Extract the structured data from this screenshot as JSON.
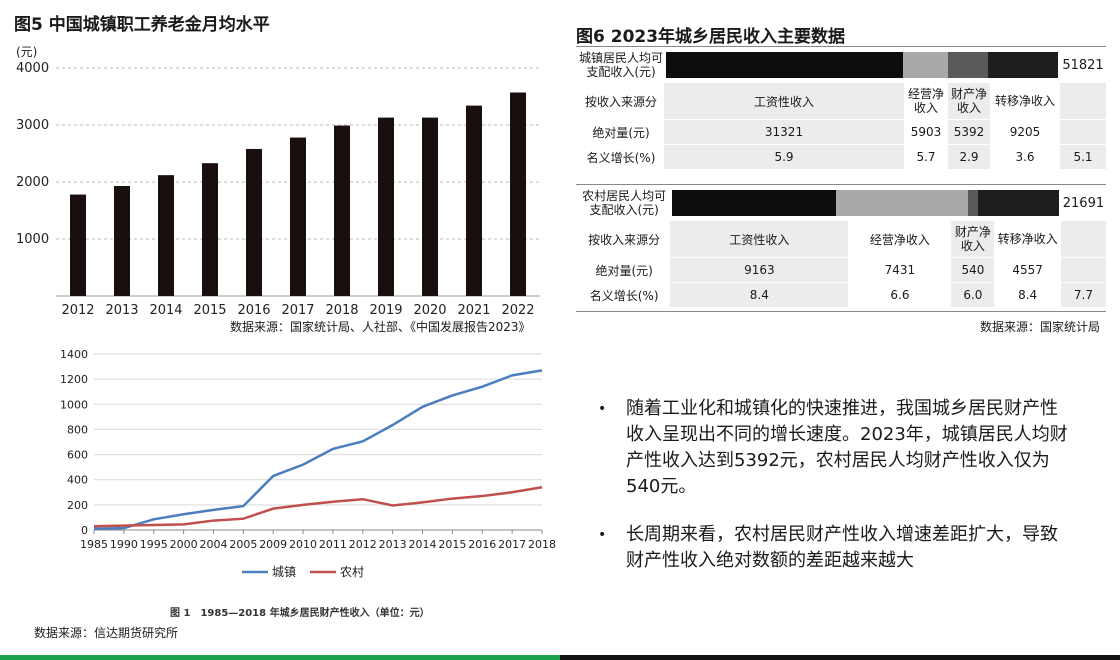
{
  "fig5": {
    "title": "图5 中国城镇职工养老金月均水平",
    "source": "数据来源：国家统计局、人社部、《中国发展报告2023》"
  },
  "fig6": {
    "title": "图6 2023年城乡居民收入主要数据",
    "source": "数据来源：国家统计局",
    "urban": {
      "label": "城镇居民人均可支配收入(元)",
      "total": "51821",
      "row_labels": [
        "按收入来源分",
        "绝对量(元)",
        "名义增长(%)"
      ],
      "columns": [
        "工资性收入",
        "经营净收入",
        "财产净收入",
        "转移净收入"
      ],
      "amounts": [
        "31321",
        "5903",
        "5392",
        "9205"
      ],
      "growth": [
        "5.9",
        "5.7",
        "2.9",
        "3.6"
      ],
      "total_growth": "5.1",
      "bar_colors": [
        "#0d0d0d",
        "#a9a9a9",
        "#5a5a5a",
        "#1e1e1e"
      ],
      "bar_values": [
        31321,
        5903,
        5392,
        9205
      ]
    },
    "rural": {
      "label": "农村居民人均可支配收入(元)",
      "total": "21691",
      "row_labels": [
        "按收入来源分",
        "绝对量(元)",
        "名义增长(%)"
      ],
      "columns": [
        "工资性收入",
        "经营净收入",
        "财产净收入",
        "转移净收入"
      ],
      "amounts": [
        "9163",
        "7431",
        "540",
        "4557"
      ],
      "growth": [
        "8.4",
        "6.6",
        "6.0",
        "8.4"
      ],
      "total_growth": "7.7",
      "bar_colors": [
        "#0d0d0d",
        "#a9a9a9",
        "#5a5a5a",
        "#1e1e1e"
      ],
      "bar_values": [
        9163,
        7431,
        540,
        4557
      ]
    }
  },
  "line_fig": {
    "caption": "图 1　1985—2018 年城乡居民财产性收入（单位：元）",
    "source": "数据来源：信达期货研究所"
  },
  "bullets": [
    "随着工业化和城镇化的快速推进，我国城乡居民财产性收入呈现出不同的增长速度。2023年，城镇居民人均财产性收入达到5392元，农村居民人均财产性收入仅为540元。",
    "长周期来看，农村居民财产性收入增速差距扩大，导致财产性收入绝对数额的差距越来越大"
  ],
  "chart_data": [
    {
      "type": "bar",
      "title": "图5 中国城镇职工养老金月均水平",
      "ylabel": "(元)",
      "categories": [
        "2012",
        "2013",
        "2014",
        "2015",
        "2016",
        "2017",
        "2018",
        "2019",
        "2020",
        "2021",
        "2022"
      ],
      "values": [
        1780,
        1930,
        2120,
        2330,
        2580,
        2780,
        2990,
        3130,
        3130,
        3340,
        3570
      ],
      "ylim": [
        0,
        4000
      ],
      "yticks": [
        1000,
        2000,
        3000,
        4000
      ],
      "grid": true,
      "bar_color": "#1a0f0f"
    },
    {
      "type": "line",
      "title": "1985—2018 年城乡居民财产性收入（单位：元）",
      "x": [
        "1985",
        "1990",
        "1995",
        "2000",
        "2004",
        "2005",
        "2009",
        "2010",
        "2011",
        "2012",
        "2013",
        "2014",
        "2015",
        "2016",
        "2017",
        "2018"
      ],
      "series": [
        {
          "name": "城镇",
          "color": "#4a7ebf",
          "values": [
            10,
            15,
            85,
            125,
            160,
            190,
            430,
            520,
            645,
            705,
            835,
            980,
            1070,
            1140,
            1230,
            1270
          ]
        },
        {
          "name": "农村",
          "color": "#c0504d",
          "values": [
            30,
            35,
            40,
            45,
            75,
            90,
            170,
            200,
            225,
            245,
            195,
            220,
            250,
            270,
            300,
            340
          ]
        }
      ],
      "ylim": [
        0,
        1400
      ],
      "yticks": [
        0,
        200,
        400,
        600,
        800,
        1000,
        1200,
        1400
      ],
      "grid": true,
      "legend": "bottom"
    }
  ]
}
